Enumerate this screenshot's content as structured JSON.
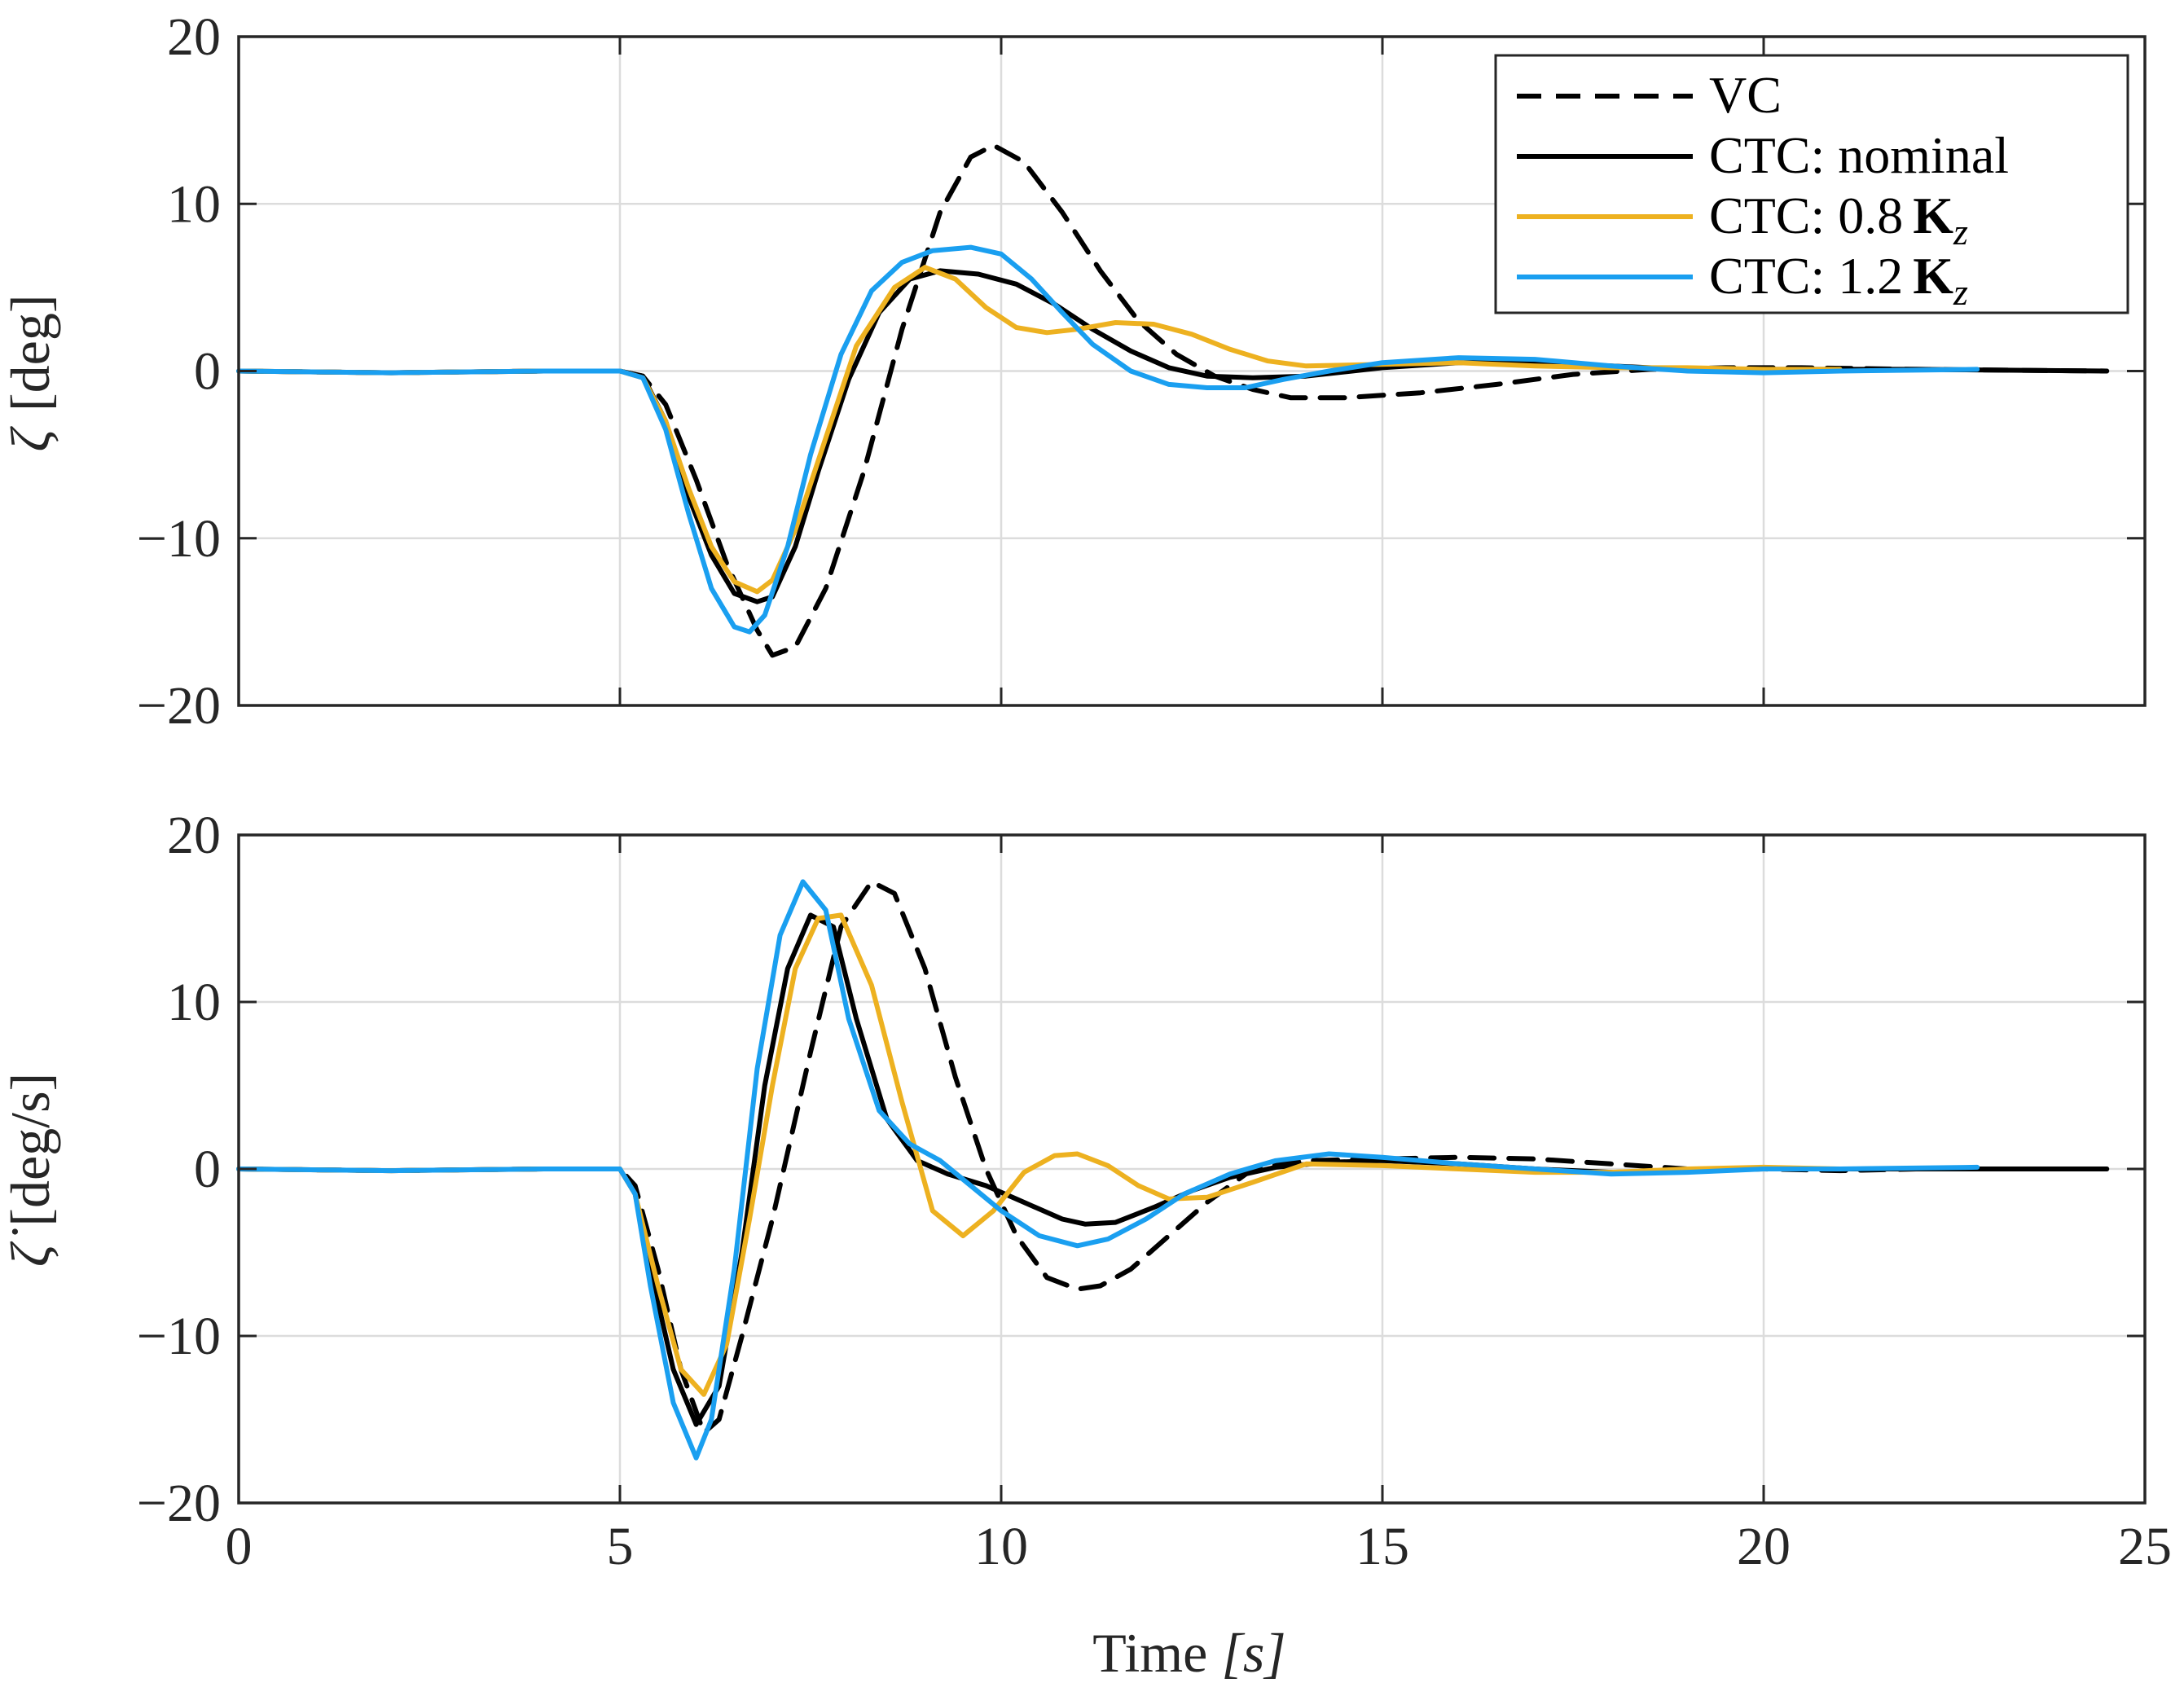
{
  "colors": {
    "vc": "#000000",
    "nominal": "#000000",
    "k08": "#EDB120",
    "k12": "#1A9FF0",
    "grid": "#dcdcdc",
    "axes": "#262626"
  },
  "legend": {
    "items": [
      {
        "label": "VC",
        "style": "dashed",
        "color": "#000000"
      },
      {
        "label": "CTC: nominal",
        "style": "solid",
        "color": "#000000"
      },
      {
        "label_prefix": "CTC: 0.8",
        "label_bold": "K",
        "label_sub": "z",
        "style": "solid",
        "color": "#EDB120"
      },
      {
        "label_prefix": "CTC: 1.2",
        "label_bold": "K",
        "label_sub": "z",
        "style": "solid",
        "color": "#1A9FF0"
      }
    ]
  },
  "chart_data": [
    {
      "type": "line",
      "xlim": [
        0,
        25
      ],
      "ylim": [
        -20,
        20
      ],
      "xticks": [
        0,
        5,
        10,
        15,
        20,
        25
      ],
      "yticks": [
        20,
        10,
        0,
        -10,
        -20
      ],
      "ytick_labels": [
        "20",
        "10",
        "0",
        "−10",
        "−20"
      ],
      "xtick_labels_shown": false,
      "ylabel_symbol": "ζ",
      "ylabel_unit": "[deg]",
      "grid": true,
      "legend_position": "top-right",
      "series": [
        {
          "name": "VC",
          "style": "dashed",
          "color": "#000000",
          "x": [
            0,
            2,
            4,
            5,
            5.3,
            5.6,
            6,
            6.4,
            6.8,
            7.0,
            7.3,
            7.7,
            8.2,
            8.7,
            9.2,
            9.6,
            9.9,
            10.3,
            10.8,
            11.3,
            11.8,
            12.3,
            12.8,
            13.3,
            13.8,
            14.5,
            15.5,
            16.5,
            17.5,
            18.5,
            19.5,
            20.5,
            22,
            24.5
          ],
          "y": [
            0,
            -0.1,
            0,
            0,
            -0.3,
            -2,
            -6.5,
            -11.5,
            -15.5,
            -17,
            -16.5,
            -13,
            -6,
            2.5,
            9.5,
            12.8,
            13.5,
            12.5,
            9.5,
            6,
            3,
            1,
            -0.3,
            -1.1,
            -1.6,
            -1.6,
            -1.3,
            -0.8,
            -0.2,
            0.1,
            0.2,
            0.2,
            0.1,
            0
          ]
        },
        {
          "name": "CTC: nominal",
          "style": "solid",
          "color": "#000000",
          "x": [
            0,
            2,
            4,
            5,
            5.3,
            5.6,
            5.9,
            6.2,
            6.5,
            6.8,
            7.0,
            7.3,
            7.6,
            8.0,
            8.4,
            8.8,
            9.2,
            9.7,
            10.2,
            10.7,
            11.2,
            11.7,
            12.2,
            12.7,
            13.3,
            14,
            15,
            16,
            17,
            18,
            19,
            20,
            22,
            24.5
          ],
          "y": [
            0,
            -0.1,
            0,
            0,
            -0.3,
            -3,
            -7.5,
            -11,
            -13.3,
            -13.8,
            -13.5,
            -10.5,
            -6,
            -0.5,
            3.5,
            5.5,
            6,
            5.8,
            5.2,
            4,
            2.5,
            1.2,
            0.2,
            -0.3,
            -0.4,
            -0.3,
            0.2,
            0.5,
            0.5,
            0.3,
            0.1,
            0.1,
            0.1,
            0
          ]
        },
        {
          "name": "CTC: 0.8Kz",
          "style": "solid",
          "color": "#EDB120",
          "x": [
            0,
            2,
            4,
            5,
            5.3,
            5.6,
            5.9,
            6.2,
            6.5,
            6.8,
            7.0,
            7.3,
            7.7,
            8.1,
            8.6,
            9.0,
            9.4,
            9.8,
            10.2,
            10.6,
            11.0,
            11.5,
            12.0,
            12.5,
            13.0,
            13.5,
            14,
            15,
            16,
            17,
            18,
            19,
            20,
            21
          ],
          "y": [
            0,
            -0.1,
            0,
            0,
            -0.4,
            -3,
            -7,
            -10.5,
            -12.6,
            -13.2,
            -12.5,
            -9.5,
            -4,
            1.5,
            5,
            6.2,
            5.5,
            3.8,
            2.6,
            2.3,
            2.5,
            2.9,
            2.8,
            2.2,
            1.3,
            0.6,
            0.3,
            0.4,
            0.5,
            0.3,
            0.2,
            0.2,
            0.1,
            0.1
          ]
        },
        {
          "name": "CTC: 1.2Kz",
          "style": "solid",
          "color": "#1A9FF0",
          "x": [
            0,
            2,
            4,
            5,
            5.3,
            5.6,
            5.9,
            6.2,
            6.5,
            6.7,
            6.9,
            7.2,
            7.5,
            7.9,
            8.3,
            8.7,
            9.1,
            9.6,
            10.0,
            10.4,
            10.8,
            11.2,
            11.7,
            12.2,
            12.7,
            13.2,
            13.7,
            14.3,
            15,
            16,
            17,
            18,
            19,
            20,
            21,
            22.8
          ],
          "y": [
            0,
            -0.1,
            0,
            0,
            -0.4,
            -3.5,
            -8.5,
            -13,
            -15.3,
            -15.6,
            -14.6,
            -10.5,
            -5,
            1,
            4.8,
            6.5,
            7.2,
            7.4,
            7,
            5.5,
            3.5,
            1.6,
            0,
            -0.8,
            -1.0,
            -1.0,
            -0.5,
            0,
            0.5,
            0.8,
            0.7,
            0.3,
            0,
            -0.1,
            0,
            0.1
          ]
        }
      ]
    },
    {
      "type": "line",
      "xlim": [
        0,
        25
      ],
      "ylim": [
        -20,
        20
      ],
      "xticks": [
        0,
        5,
        10,
        15,
        20,
        25
      ],
      "xtick_labels": [
        "0",
        "5",
        "10",
        "15",
        "20",
        "25"
      ],
      "yticks": [
        20,
        10,
        0,
        -10,
        -20
      ],
      "ytick_labels": [
        "20",
        "10",
        "0",
        "−10",
        "−20"
      ],
      "xlabel_text": "Time ",
      "xlabel_unit": "[s]",
      "ylabel_symbol": "ζ̇",
      "ylabel_unit": "[deg/s]",
      "grid": true,
      "series": [
        {
          "name": "VC",
          "style": "dashed",
          "color": "#000000",
          "x": [
            0,
            2,
            4,
            5,
            5.2,
            5.5,
            5.8,
            6.1,
            6.3,
            6.6,
            7.0,
            7.5,
            7.9,
            8.3,
            8.6,
            9.0,
            9.4,
            9.8,
            10.2,
            10.6,
            11.0,
            11.3,
            11.7,
            12.2,
            12.7,
            13.3,
            14,
            15,
            16,
            17,
            18,
            19,
            20,
            21,
            22,
            23,
            24.5
          ],
          "y": [
            0,
            -0.1,
            0,
            0,
            -1,
            -6,
            -12,
            -15.8,
            -15,
            -10,
            -3,
            7,
            14.5,
            17.2,
            16.5,
            12,
            5.5,
            0,
            -4,
            -6.5,
            -7.2,
            -7,
            -6,
            -4,
            -2,
            0,
            0.5,
            0.6,
            0.7,
            0.6,
            0.3,
            0,
            0,
            -0.1,
            0,
            0,
            0
          ]
        },
        {
          "name": "CTC: nominal",
          "style": "solid",
          "color": "#000000",
          "x": [
            0,
            2,
            4,
            5,
            5.2,
            5.4,
            5.7,
            6.0,
            6.3,
            6.6,
            6.9,
            7.2,
            7.5,
            7.8,
            8.1,
            8.5,
            8.9,
            9.3,
            9.8,
            10.3,
            10.8,
            11.1,
            11.5,
            12.0,
            12.5,
            13.0,
            13.6,
            14.3,
            15,
            16,
            17,
            18,
            19,
            20,
            22,
            24.5
          ],
          "y": [
            0,
            -0.1,
            0,
            0,
            -1.5,
            -6,
            -12,
            -15.3,
            -13,
            -5,
            5,
            12,
            15.2,
            14.5,
            9,
            3,
            0.5,
            -0.3,
            -1,
            -2,
            -3,
            -3.3,
            -3.2,
            -2.3,
            -1.3,
            -0.5,
            0.1,
            0.4,
            0.5,
            0.3,
            0,
            -0.2,
            -0.1,
            0,
            0,
            0
          ]
        },
        {
          "name": "CTC: 0.8Kz",
          "style": "solid",
          "color": "#EDB120",
          "x": [
            0,
            2,
            4,
            5,
            5.2,
            5.5,
            5.8,
            6.1,
            6.4,
            6.7,
            7.0,
            7.3,
            7.6,
            7.9,
            8.3,
            8.7,
            9.1,
            9.5,
            9.9,
            10.3,
            10.7,
            11.0,
            11.4,
            11.8,
            12.2,
            12.7,
            13.3,
            14,
            15,
            16,
            17,
            18,
            19,
            20,
            21
          ],
          "y": [
            0,
            -0.1,
            0,
            0,
            -1.5,
            -7,
            -12,
            -13.5,
            -10.5,
            -3,
            5,
            12,
            15,
            15.2,
            11,
            4,
            -2.5,
            -4,
            -2.5,
            -0.2,
            0.8,
            0.9,
            0.2,
            -1,
            -1.8,
            -1.7,
            -0.8,
            0.3,
            0.2,
            0,
            -0.2,
            -0.2,
            0,
            0.1,
            0
          ]
        },
        {
          "name": "CTC: 1.2Kz",
          "style": "solid",
          "color": "#1A9FF0",
          "x": [
            0,
            2,
            4,
            5,
            5.2,
            5.4,
            5.7,
            6.0,
            6.2,
            6.5,
            6.8,
            7.1,
            7.4,
            7.7,
            8.0,
            8.4,
            8.8,
            9.2,
            9.6,
            10.0,
            10.5,
            11.0,
            11.4,
            11.9,
            12.4,
            13.0,
            13.6,
            14.3,
            15,
            16,
            17,
            18,
            19,
            20,
            21,
            22.8
          ],
          "y": [
            0,
            -0.1,
            0,
            0,
            -1.5,
            -7,
            -14,
            -17.3,
            -15,
            -6,
            6,
            14,
            17.2,
            15.5,
            9,
            3.5,
            1.5,
            0.5,
            -1,
            -2.5,
            -4,
            -4.6,
            -4.2,
            -3,
            -1.5,
            -0.3,
            0.5,
            0.9,
            0.7,
            0.3,
            0,
            -0.3,
            -0.2,
            0,
            0,
            0.1
          ]
        }
      ]
    }
  ]
}
